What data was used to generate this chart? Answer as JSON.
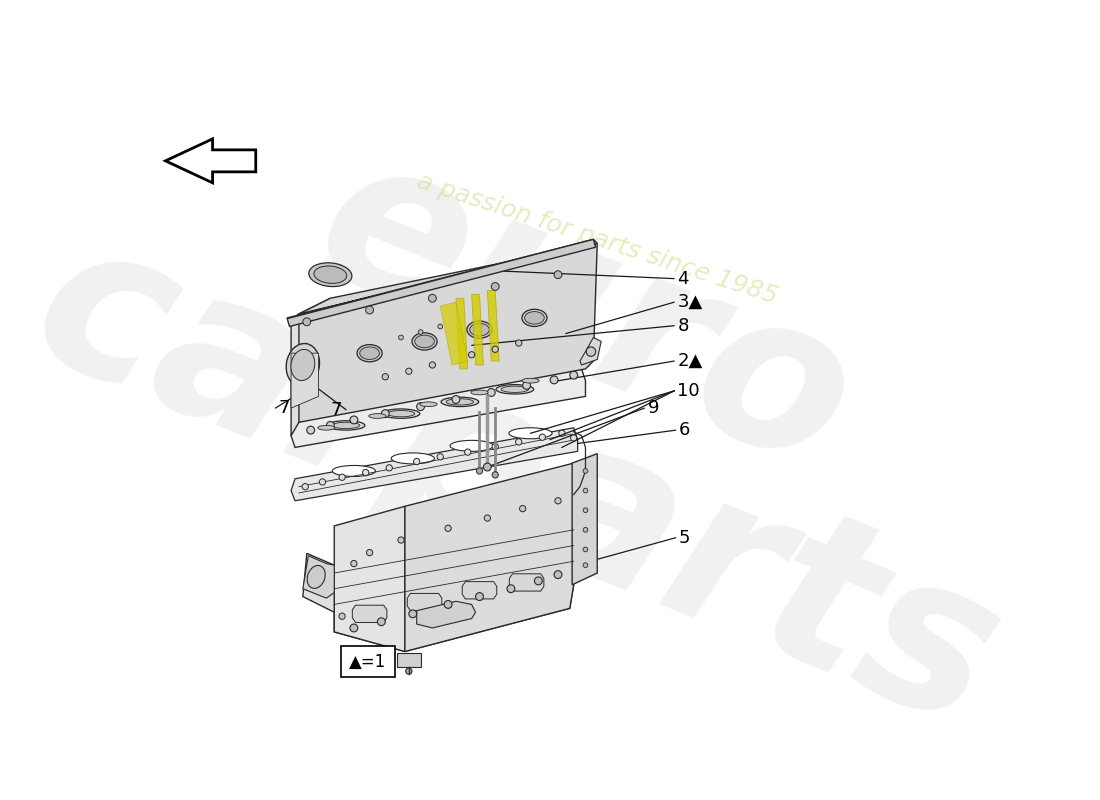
{
  "background_color": "#ffffff",
  "legend_text": "▲=1",
  "arrow_color": "#1a1a1a",
  "line_color": "#2a2a2a",
  "part_fill": "#f0f0f0",
  "part_fill_mid": "#e0e0e0",
  "part_fill_dark": "#cccccc",
  "gasket_fill": "#e8e8e8",
  "highlight_color": "#d4cc00",
  "watermark_color1": "#c8c8c8",
  "watermark_color2": "#d8d890",
  "wm_alpha1": 0.25,
  "wm_alpha2": 0.55,
  "label_5": "5",
  "label_6": "6",
  "label_7": "7",
  "label_8": "8",
  "label_9": "9",
  "label_10": "10",
  "label_2": "2▲",
  "label_3": "3▲",
  "label_4": "4",
  "fontsize_label": 13,
  "fontsize_legend": 12
}
